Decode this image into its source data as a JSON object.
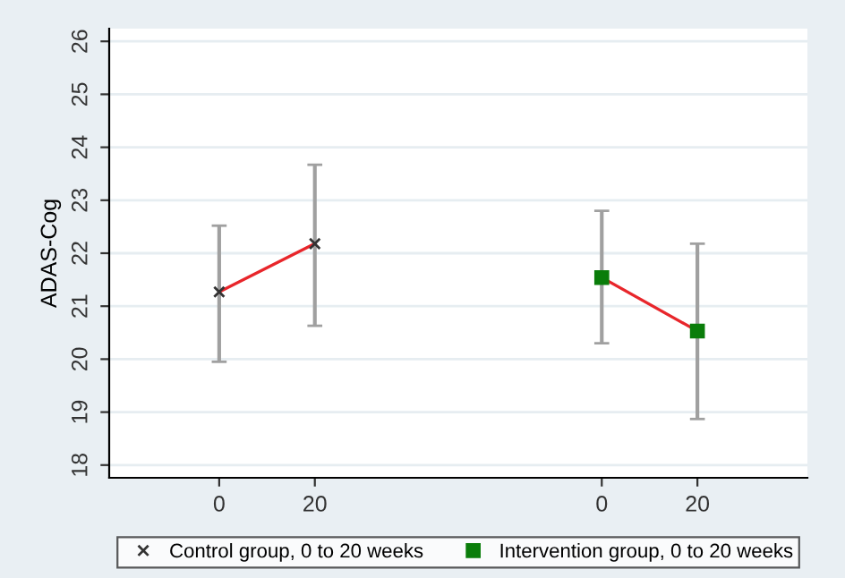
{
  "chart_data": {
    "type": "line",
    "ylabel": "ADAS-Cog",
    "categories": [
      "0",
      "20",
      null,
      null,
      "0",
      "20"
    ],
    "ylim": [
      17.76,
      26.24
    ],
    "yticks": [
      18,
      19,
      20,
      21,
      22,
      23,
      24,
      25,
      26
    ],
    "grid": "y",
    "legend": "bottom",
    "series": [
      {
        "name": "Control group, 0 to 20 weeks",
        "color": "#e8262b",
        "marker": "cross",
        "colors": [
          "#333333",
          "#333333",
          null,
          null,
          null,
          null
        ],
        "values": [
          21.27,
          22.18,
          null,
          null,
          null,
          null
        ],
        "errors": [
          [
            19.95,
            22.52
          ],
          [
            20.63,
            23.67
          ],
          null,
          null,
          null,
          null
        ]
      },
      {
        "name": "Intervention group, 0 to 20 weeks",
        "color": "#e8262b",
        "marker": "square",
        "colors": [
          null,
          null,
          null,
          null,
          "#0a7d0a",
          "#0a7d0a"
        ],
        "values": [
          null,
          null,
          null,
          null,
          21.54,
          20.53
        ],
        "errors": [
          null,
          null,
          null,
          null,
          [
            20.3,
            22.8
          ],
          [
            18.87,
            22.18
          ]
        ]
      }
    ]
  }
}
